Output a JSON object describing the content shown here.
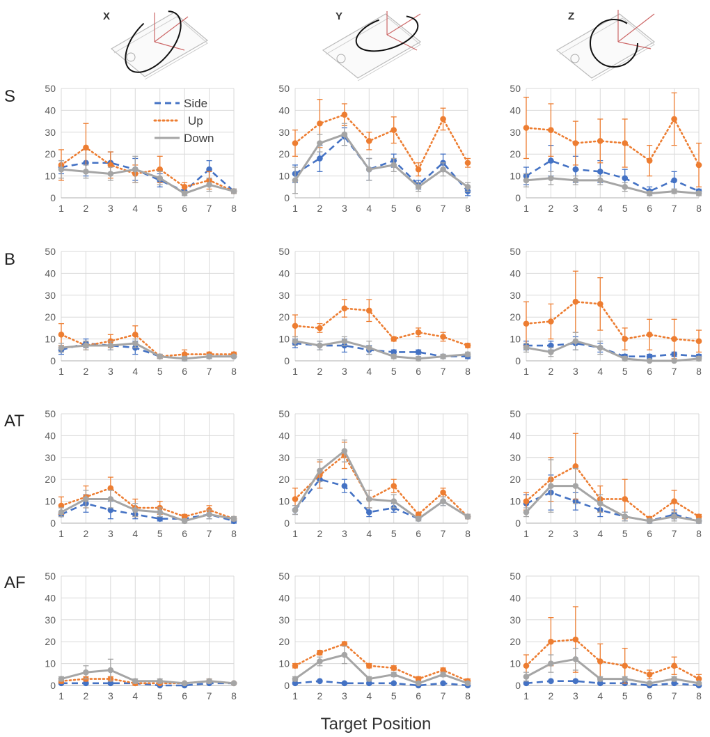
{
  "figure": {
    "column_labels": [
      "X",
      "Y",
      "Z"
    ],
    "row_labels": [
      "S",
      "B",
      "AT",
      "AF"
    ],
    "xlabel": "Target Position"
  },
  "legend": {
    "items": [
      {
        "name": "Side",
        "color": "#4472C4",
        "style": "dashed"
      },
      {
        "name": "Up",
        "color": "#ED7D31",
        "style": "dotted"
      },
      {
        "name": "Down",
        "color": "#A5A5A5",
        "style": "solid"
      }
    ]
  },
  "icons": [
    "phone-rotation-x-icon",
    "phone-rotation-y-icon",
    "phone-rotation-z-icon"
  ],
  "chart_data": [
    {
      "type": "line",
      "row": "S",
      "column": "X",
      "x": [
        1,
        2,
        3,
        4,
        5,
        6,
        7,
        8
      ],
      "ylim": [
        0,
        50
      ],
      "yticks": [
        0,
        10,
        20,
        30,
        40,
        50
      ],
      "series": [
        {
          "name": "Side",
          "values": [
            14,
            16,
            16,
            13,
            8,
            3,
            13,
            3
          ],
          "error": [
            3,
            6,
            5,
            5,
            3,
            2,
            4,
            1
          ]
        },
        {
          "name": "Up",
          "values": [
            15,
            23,
            15,
            11,
            13,
            5,
            8,
            3
          ],
          "error": [
            7,
            11,
            6,
            4,
            6,
            2,
            4,
            1
          ]
        },
        {
          "name": "Down",
          "values": [
            13,
            12,
            11,
            13,
            9,
            2,
            6,
            3
          ],
          "error": [
            4,
            3,
            3,
            6,
            3,
            1,
            3,
            1
          ]
        }
      ]
    },
    {
      "type": "line",
      "row": "S",
      "column": "Y",
      "x": [
        1,
        2,
        3,
        4,
        5,
        6,
        7,
        8
      ],
      "ylim": [
        0,
        50
      ],
      "yticks": [
        0,
        10,
        20,
        30,
        40,
        50
      ],
      "series": [
        {
          "name": "Side",
          "values": [
            11,
            18,
            28,
            13,
            17,
            6,
            16,
            3
          ],
          "error": [
            4,
            6,
            4,
            5,
            3,
            2,
            4,
            2
          ]
        },
        {
          "name": "Up",
          "values": [
            25,
            34,
            38,
            26,
            31,
            13,
            36,
            16
          ],
          "error": [
            6,
            11,
            5,
            4,
            6,
            3,
            5,
            2
          ]
        },
        {
          "name": "Down",
          "values": [
            8,
            25,
            29,
            13,
            15,
            5,
            13,
            5
          ],
          "error": [
            6,
            4,
            5,
            5,
            3,
            2,
            3,
            2
          ]
        }
      ]
    },
    {
      "type": "line",
      "row": "S",
      "column": "Z",
      "x": [
        1,
        2,
        3,
        4,
        5,
        6,
        7,
        8
      ],
      "ylim": [
        0,
        50
      ],
      "yticks": [
        0,
        10,
        20,
        30,
        40,
        50
      ],
      "series": [
        {
          "name": "Side",
          "values": [
            10,
            17,
            13,
            12,
            9,
            3,
            8,
            3
          ],
          "error": [
            4,
            7,
            6,
            5,
            4,
            2,
            4,
            1
          ]
        },
        {
          "name": "Up",
          "values": [
            32,
            31,
            25,
            26,
            25,
            17,
            36,
            15
          ],
          "error": [
            14,
            12,
            10,
            10,
            11,
            7,
            12,
            10
          ]
        },
        {
          "name": "Down",
          "values": [
            8,
            9,
            8,
            8,
            5,
            2,
            3,
            2
          ],
          "error": [
            3,
            3,
            2,
            2,
            2,
            1,
            1,
            1
          ]
        }
      ]
    },
    {
      "type": "line",
      "row": "B",
      "column": "X",
      "x": [
        1,
        2,
        3,
        4,
        5,
        6,
        7,
        8
      ],
      "ylim": [
        0,
        50
      ],
      "yticks": [
        0,
        10,
        20,
        30,
        40,
        50
      ],
      "series": [
        {
          "name": "Side",
          "values": [
            5,
            8,
            7,
            6,
            2,
            1,
            2,
            2
          ],
          "error": [
            2,
            2,
            2,
            3,
            1,
            1,
            1,
            0
          ]
        },
        {
          "name": "Up",
          "values": [
            12,
            7,
            9,
            12,
            2,
            3,
            3,
            3
          ],
          "error": [
            5,
            2,
            3,
            4,
            1,
            2,
            1,
            1
          ]
        },
        {
          "name": "Down",
          "values": [
            6,
            7,
            7,
            8,
            2,
            1,
            2,
            2
          ],
          "error": [
            2,
            2,
            2,
            2,
            1,
            1,
            1,
            0
          ]
        }
      ]
    },
    {
      "type": "line",
      "row": "B",
      "column": "Y",
      "x": [
        1,
        2,
        3,
        4,
        5,
        6,
        7,
        8
      ],
      "ylim": [
        0,
        50
      ],
      "yticks": [
        0,
        10,
        20,
        30,
        40,
        50
      ],
      "series": [
        {
          "name": "Side",
          "values": [
            8,
            7,
            7,
            5,
            4,
            4,
            2,
            2
          ],
          "error": [
            2,
            2,
            3,
            2,
            1,
            1,
            1,
            1
          ]
        },
        {
          "name": "Up",
          "values": [
            16,
            15,
            24,
            23,
            10,
            13,
            11,
            7
          ],
          "error": [
            5,
            2,
            4,
            5,
            1,
            2,
            2,
            1
          ]
        },
        {
          "name": "Down",
          "values": [
            9,
            7,
            9,
            6,
            2,
            1,
            2,
            3
          ],
          "error": [
            2,
            2,
            2,
            3,
            1,
            1,
            1,
            1
          ]
        }
      ]
    },
    {
      "type": "line",
      "row": "B",
      "column": "Z",
      "x": [
        1,
        2,
        3,
        4,
        5,
        6,
        7,
        8
      ],
      "ylim": [
        0,
        50
      ],
      "yticks": [
        0,
        10,
        20,
        30,
        40,
        50
      ],
      "series": [
        {
          "name": "Side",
          "values": [
            7,
            7,
            8,
            6,
            2,
            2,
            3,
            2
          ],
          "error": [
            2,
            2,
            3,
            2,
            1,
            1,
            1,
            1
          ]
        },
        {
          "name": "Up",
          "values": [
            17,
            18,
            27,
            26,
            10,
            12,
            10,
            9
          ],
          "error": [
            10,
            8,
            14,
            12,
            5,
            7,
            9,
            5
          ]
        },
        {
          "name": "Down",
          "values": [
            6,
            4,
            9,
            6,
            1,
            0,
            0,
            1
          ],
          "error": [
            2,
            2,
            4,
            3,
            1,
            0,
            0,
            1
          ]
        }
      ]
    },
    {
      "type": "line",
      "row": "AT",
      "column": "X",
      "x": [
        1,
        2,
        3,
        4,
        5,
        6,
        7,
        8
      ],
      "ylim": [
        0,
        50
      ],
      "yticks": [
        0,
        10,
        20,
        30,
        40,
        50
      ],
      "series": [
        {
          "name": "Side",
          "values": [
            4,
            9,
            6,
            4,
            2,
            2,
            4,
            1
          ],
          "error": [
            1,
            4,
            4,
            2,
            1,
            1,
            2,
            1
          ]
        },
        {
          "name": "Up",
          "values": [
            8,
            12,
            16,
            7,
            7,
            3,
            6,
            2
          ],
          "error": [
            4,
            5,
            5,
            4,
            3,
            1,
            2,
            1
          ]
        },
        {
          "name": "Down",
          "values": [
            5,
            11,
            11,
            6,
            5,
            1,
            4,
            2
          ],
          "error": [
            2,
            4,
            4,
            3,
            2,
            1,
            2,
            1
          ]
        }
      ]
    },
    {
      "type": "line",
      "row": "AT",
      "column": "Y",
      "x": [
        1,
        2,
        3,
        4,
        5,
        6,
        7,
        8
      ],
      "ylim": [
        0,
        50
      ],
      "yticks": [
        0,
        10,
        20,
        30,
        40,
        50
      ],
      "series": [
        {
          "name": "Side",
          "values": [
            6,
            20,
            17,
            5,
            7,
            2,
            10,
            3
          ],
          "error": [
            2,
            4,
            3,
            2,
            2,
            1,
            2,
            1
          ]
        },
        {
          "name": "Up",
          "values": [
            11,
            22,
            31,
            11,
            17,
            4,
            14,
            3
          ],
          "error": [
            5,
            6,
            6,
            4,
            3,
            1,
            2,
            1
          ]
        },
        {
          "name": "Down",
          "values": [
            6,
            24,
            33,
            11,
            10,
            2,
            10,
            3
          ],
          "error": [
            2,
            5,
            5,
            4,
            3,
            1,
            2,
            1
          ]
        }
      ]
    },
    {
      "type": "line",
      "row": "AT",
      "column": "Z",
      "x": [
        1,
        2,
        3,
        4,
        5,
        6,
        7,
        8
      ],
      "ylim": [
        0,
        50
      ],
      "yticks": [
        0,
        10,
        20,
        30,
        40,
        50
      ],
      "series": [
        {
          "name": "Side",
          "values": [
            9,
            14,
            10,
            6,
            3,
            1,
            4,
            1
          ],
          "error": [
            4,
            8,
            4,
            3,
            2,
            1,
            2,
            1
          ]
        },
        {
          "name": "Up",
          "values": [
            10,
            20,
            26,
            11,
            11,
            2,
            10,
            3
          ],
          "error": [
            4,
            10,
            15,
            6,
            9,
            1,
            5,
            1
          ]
        },
        {
          "name": "Down",
          "values": [
            5,
            17,
            17,
            9,
            3,
            1,
            3,
            1
          ],
          "error": [
            2,
            12,
            8,
            4,
            2,
            1,
            2,
            1
          ]
        }
      ]
    },
    {
      "type": "line",
      "row": "AF",
      "column": "X",
      "x": [
        1,
        2,
        3,
        4,
        5,
        6,
        7,
        8
      ],
      "ylim": [
        0,
        50
      ],
      "yticks": [
        0,
        10,
        20,
        30,
        40,
        50
      ],
      "series": [
        {
          "name": "Side",
          "values": [
            1,
            1,
            1,
            1,
            0,
            0,
            1,
            1
          ],
          "error": [
            0,
            0,
            0,
            0,
            0,
            0,
            0,
            0
          ]
        },
        {
          "name": "Up",
          "values": [
            2,
            3,
            3,
            1,
            1,
            1,
            2,
            1
          ],
          "error": [
            1,
            1,
            1,
            1,
            0,
            0,
            1,
            0
          ]
        },
        {
          "name": "Down",
          "values": [
            3,
            6,
            7,
            2,
            2,
            1,
            2,
            1
          ],
          "error": [
            1,
            3,
            5,
            1,
            1,
            0,
            1,
            0
          ]
        }
      ]
    },
    {
      "type": "line",
      "row": "AF",
      "column": "Y",
      "x": [
        1,
        2,
        3,
        4,
        5,
        6,
        7,
        8
      ],
      "ylim": [
        0,
        50
      ],
      "yticks": [
        0,
        10,
        20,
        30,
        40,
        50
      ],
      "series": [
        {
          "name": "Side",
          "values": [
            1,
            2,
            1,
            1,
            1,
            0,
            1,
            0
          ],
          "error": [
            0,
            0,
            0,
            0,
            0,
            0,
            0,
            0
          ]
        },
        {
          "name": "Up",
          "values": [
            9,
            15,
            19,
            9,
            8,
            3,
            7,
            2
          ],
          "error": [
            1,
            1,
            1,
            1,
            1,
            1,
            1,
            1
          ]
        },
        {
          "name": "Down",
          "values": [
            3,
            11,
            14,
            3,
            5,
            1,
            5,
            1
          ],
          "error": [
            1,
            2,
            4,
            1,
            1,
            0,
            1,
            0
          ]
        }
      ]
    },
    {
      "type": "line",
      "row": "AF",
      "column": "Z",
      "x": [
        1,
        2,
        3,
        4,
        5,
        6,
        7,
        8
      ],
      "ylim": [
        0,
        50
      ],
      "yticks": [
        0,
        10,
        20,
        30,
        40,
        50
      ],
      "series": [
        {
          "name": "Side",
          "values": [
            1,
            2,
            2,
            1,
            1,
            0,
            1,
            0
          ],
          "error": [
            0,
            0,
            0,
            0,
            0,
            0,
            0,
            0
          ]
        },
        {
          "name": "Up",
          "values": [
            9,
            20,
            21,
            11,
            9,
            5,
            9,
            3
          ],
          "error": [
            5,
            11,
            15,
            8,
            8,
            2,
            4,
            2
          ]
        },
        {
          "name": "Down",
          "values": [
            4,
            10,
            12,
            3,
            3,
            1,
            3,
            1
          ],
          "error": [
            2,
            4,
            5,
            1,
            1,
            0,
            1,
            0
          ]
        }
      ]
    }
  ]
}
